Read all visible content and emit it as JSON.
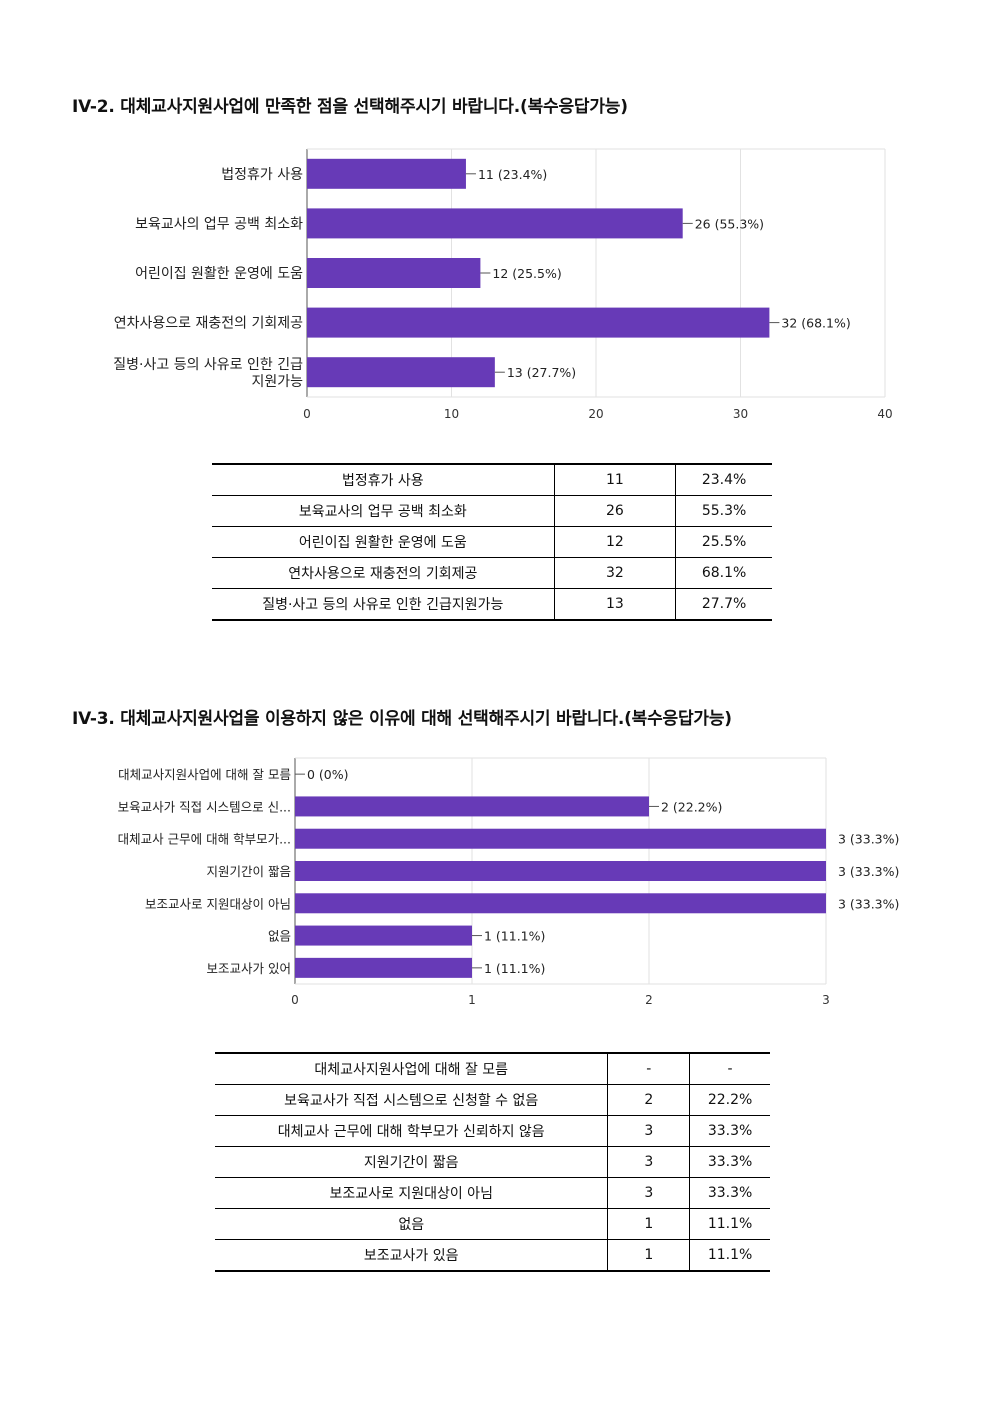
{
  "section1": {
    "title": "IV-2. 대체교사지원사업에 만족한 점을 선택해주시기 바랍니다.(복수응답가능)",
    "chart_data": {
      "type": "bar",
      "orientation": "horizontal",
      "categories": [
        "법정휴가 사용",
        "보육교사의 업무 공백 최소화",
        "어린이집 원활한 운영에 도움",
        "연차사용으로 재충전의 기회제공",
        "질병·사고 등의 사유로 인한 긴급 지원가능"
      ],
      "values": [
        11,
        26,
        12,
        32,
        13
      ],
      "value_labels": [
        "11 (23.4%)",
        "26 (55.3%)",
        "12 (25.5%)",
        "32 (68.1%)",
        "13 (27.7%)"
      ],
      "xlim": [
        0,
        40
      ],
      "xticks": [
        0,
        10,
        20,
        30,
        40
      ],
      "grid": true,
      "bar_color": "#673ab7"
    },
    "table": [
      [
        "법정휴가 사용",
        "11",
        "23.4%"
      ],
      [
        "보육교사의 업무 공백 최소화",
        "26",
        "55.3%"
      ],
      [
        "어린이집 원활한 운영에 도움",
        "12",
        "25.5%"
      ],
      [
        "연차사용으로 재충전의 기회제공",
        "32",
        "68.1%"
      ],
      [
        "질병·사고 등의 사유로 인한 긴급지원가능",
        "13",
        "27.7%"
      ]
    ]
  },
  "section2": {
    "title": "IV-3. 대체교사지원사업을 이용하지 않은 이유에 대해 선택해주시기 바랍니다.(복수응답가능)",
    "chart_data": {
      "type": "bar",
      "orientation": "horizontal",
      "categories": [
        "대체교사지원사업에 대해 잘 모름",
        "보육교사가 직접 시스템으로 신...",
        "대체교사 근무에 대해 학부모가...",
        "지원기간이 짧음",
        "보조교사로 지원대상이 아님",
        "없음",
        "보조교사가 있어"
      ],
      "values": [
        0,
        2,
        3,
        3,
        3,
        1,
        1
      ],
      "value_labels": [
        "0 (0%)",
        "2 (22.2%)",
        "3 (33.3%)",
        "3 (33.3%)",
        "3 (33.3%)",
        "1 (11.1%)",
        "1 (11.1%)"
      ],
      "xlim": [
        0,
        3
      ],
      "xticks": [
        0,
        1,
        2,
        3
      ],
      "grid": true,
      "bar_color": "#673ab7"
    },
    "table": [
      [
        "대체교사지원사업에 대해 잘 모름",
        "-",
        "-"
      ],
      [
        "보육교사가 직접 시스템으로 신청할 수 없음",
        "2",
        "22.2%"
      ],
      [
        "대체교사 근무에 대해 학부모가 신뢰하지 않음",
        "3",
        "33.3%"
      ],
      [
        "지원기간이 짧음",
        "3",
        "33.3%"
      ],
      [
        "보조교사로 지원대상이 아님",
        "3",
        "33.3%"
      ],
      [
        "없음",
        "1",
        "11.1%"
      ],
      [
        "보조교사가 있음",
        "1",
        "11.1%"
      ]
    ]
  }
}
